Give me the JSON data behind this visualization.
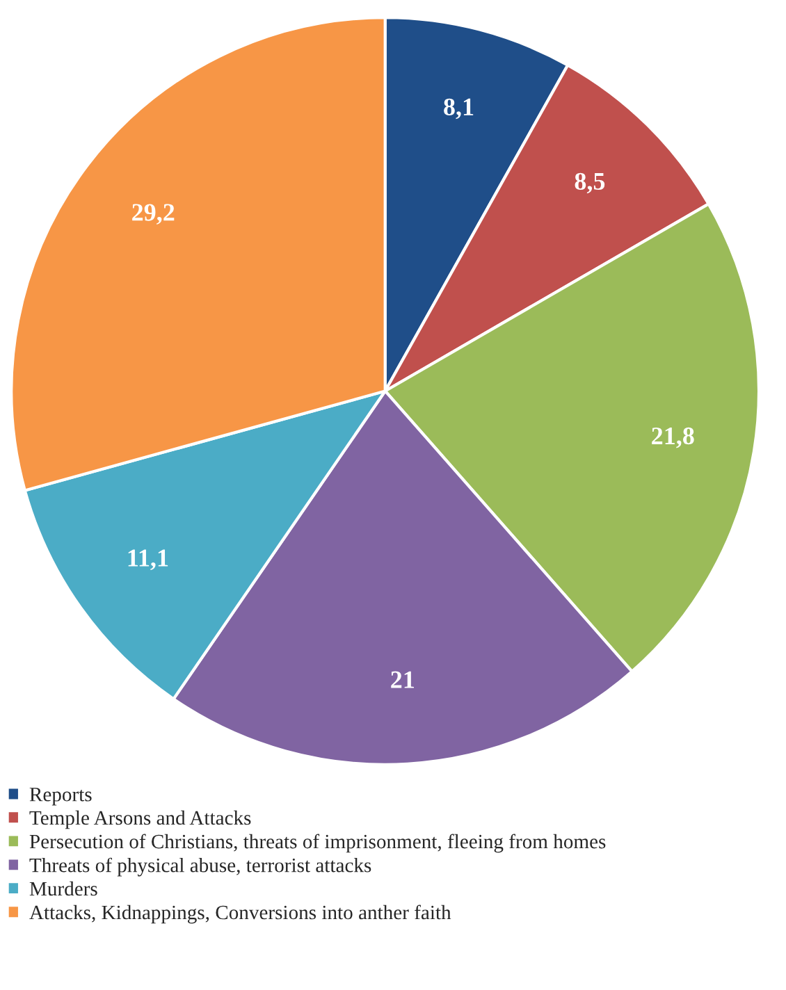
{
  "chart_data": {
    "type": "pie",
    "categories": [
      "Reports",
      "Temple Arsons and Attacks",
      "Persecution of Christians, threats of imprisonment, fleeing from homes",
      "Threats of physical abuse, terrorist attacks",
      "Murders",
      "Attacks, Kidnappings, Conversions into anther faith"
    ],
    "values": [
      8.1,
      8.5,
      21.8,
      21,
      11.1,
      29.2
    ],
    "value_labels": [
      "8,1",
      "8,5",
      "21,8",
      "21",
      "11,1",
      "29,2"
    ],
    "colors": [
      "#1f4e89",
      "#c0504d",
      "#9bbb59",
      "#8064a2",
      "#4bacc6",
      "#f79646"
    ],
    "legend": "bottom"
  }
}
